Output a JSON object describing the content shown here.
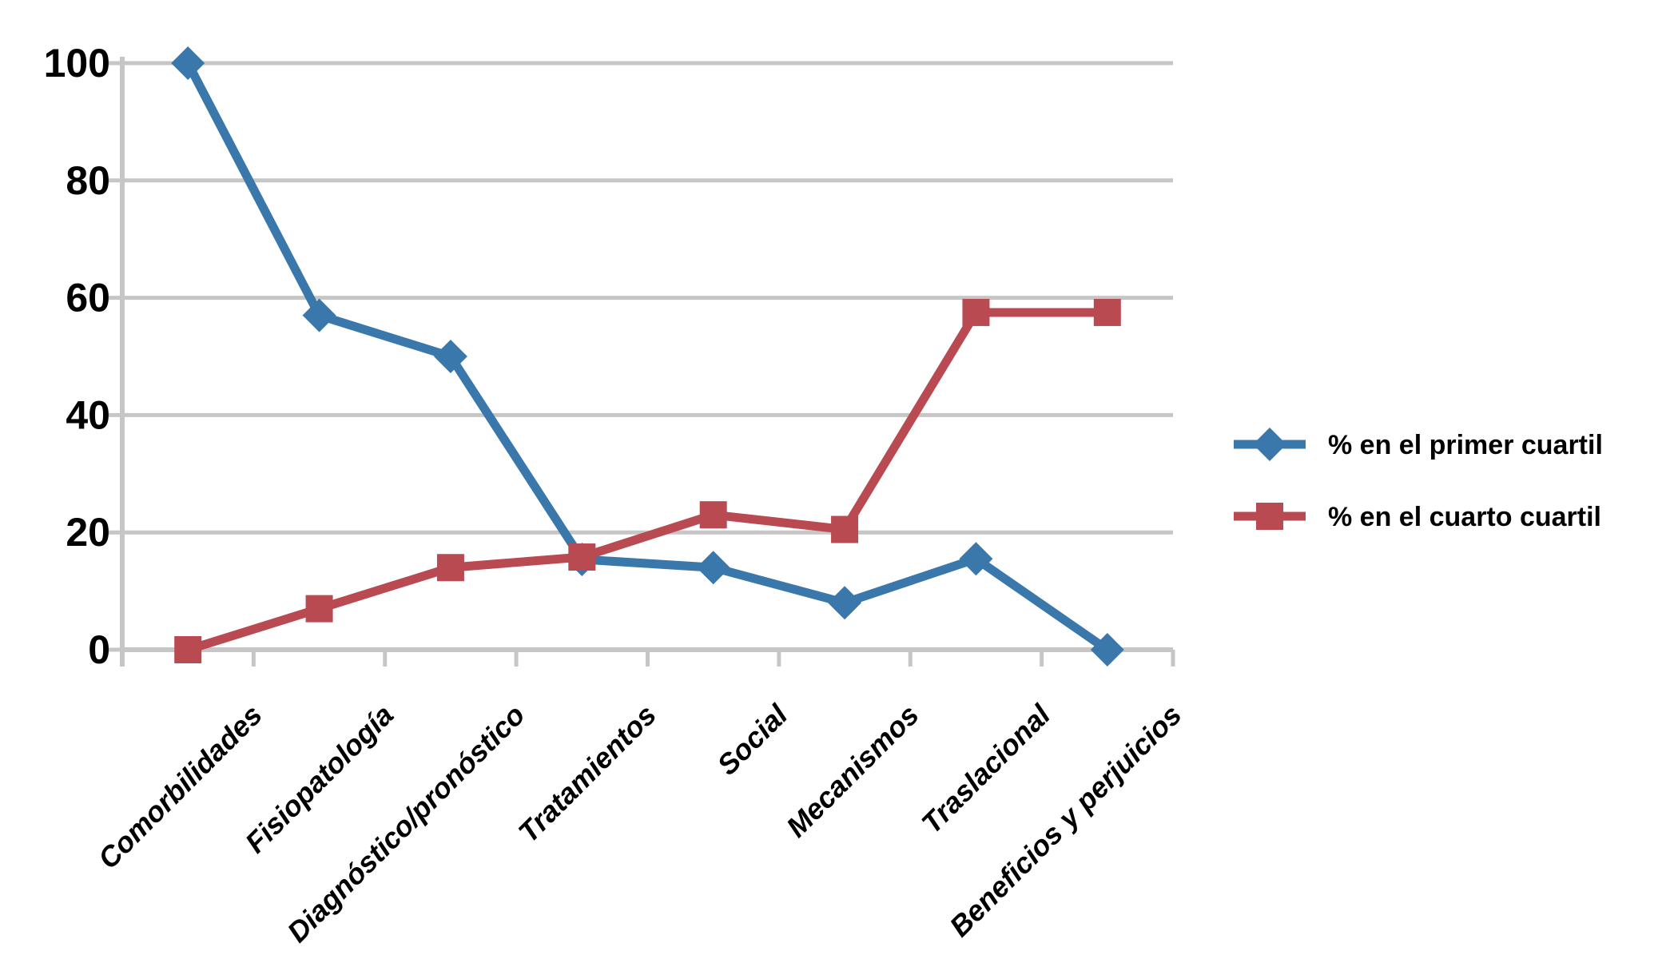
{
  "chart_data": {
    "type": "line",
    "title": "",
    "xlabel": "",
    "ylabel": "",
    "categories": [
      "Comorbilidades",
      "Fisiopatología",
      "Diagnóstico/pronóstico",
      "Tratamientos",
      "Social",
      "Mecanismos",
      "Traslacional",
      "Beneficios y perjuicios"
    ],
    "series": [
      {
        "name": "% en el primer cuartil",
        "marker": "diamond",
        "color": "#3A78AC",
        "values": [
          100,
          57,
          50,
          15.4,
          14,
          8,
          15.5,
          0
        ]
      },
      {
        "name": "% en el cuarto cuartil",
        "marker": "square",
        "color": "#B94A52",
        "values": [
          0,
          7,
          14,
          15.8,
          23,
          20.5,
          57.5,
          57.5
        ]
      }
    ],
    "yticks": [
      0,
      20,
      40,
      60,
      80,
      100
    ],
    "ylim": [
      0,
      100
    ],
    "grid": "horizontal",
    "legend_position": "right",
    "axis_color": "#C6C6C6",
    "background_color": "#FFFFFF",
    "text_color": "#000000"
  }
}
